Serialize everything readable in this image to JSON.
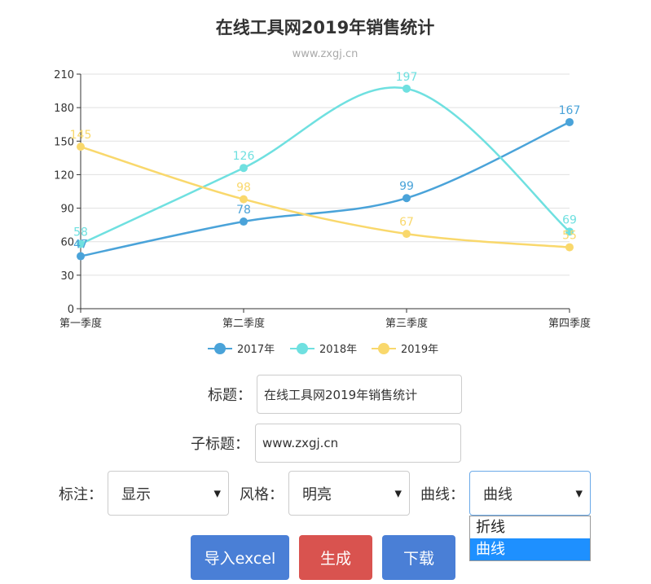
{
  "chart_data": {
    "type": "line",
    "title": "在线工具网2019年销售统计",
    "subtitle": "www.zxgj.cn",
    "categories": [
      "第一季度",
      "第二季度",
      "第三季度",
      "第四季度"
    ],
    "ylim": [
      0,
      210
    ],
    "yticks": [
      0,
      30,
      60,
      90,
      120,
      150,
      180,
      210
    ],
    "grid": true,
    "smooth": true,
    "legend_position": "bottom",
    "series": [
      {
        "name": "2017年",
        "values": [
          47,
          78,
          99,
          167
        ],
        "color": "#4aa3d9"
      },
      {
        "name": "2018年",
        "values": [
          58,
          126,
          197,
          69
        ],
        "color": "#6fe0e0"
      },
      {
        "name": "2019年",
        "values": [
          145,
          98,
          67,
          55
        ],
        "color": "#f9d86c"
      }
    ]
  },
  "form": {
    "title_label": "标题：",
    "title_value": "在线工具网2019年销售统计",
    "subtitle_label": "子标题：",
    "subtitle_value": "www.zxgj.cn",
    "label_label": "标注：",
    "label_value": "显示",
    "style_label": "风格：",
    "style_value": "明亮",
    "curve_label": "曲线：",
    "curve_value": "曲线",
    "curve_options": [
      "折线",
      "曲线"
    ]
  },
  "buttons": {
    "import": "导入excel",
    "generate": "生成",
    "download": "下载"
  }
}
